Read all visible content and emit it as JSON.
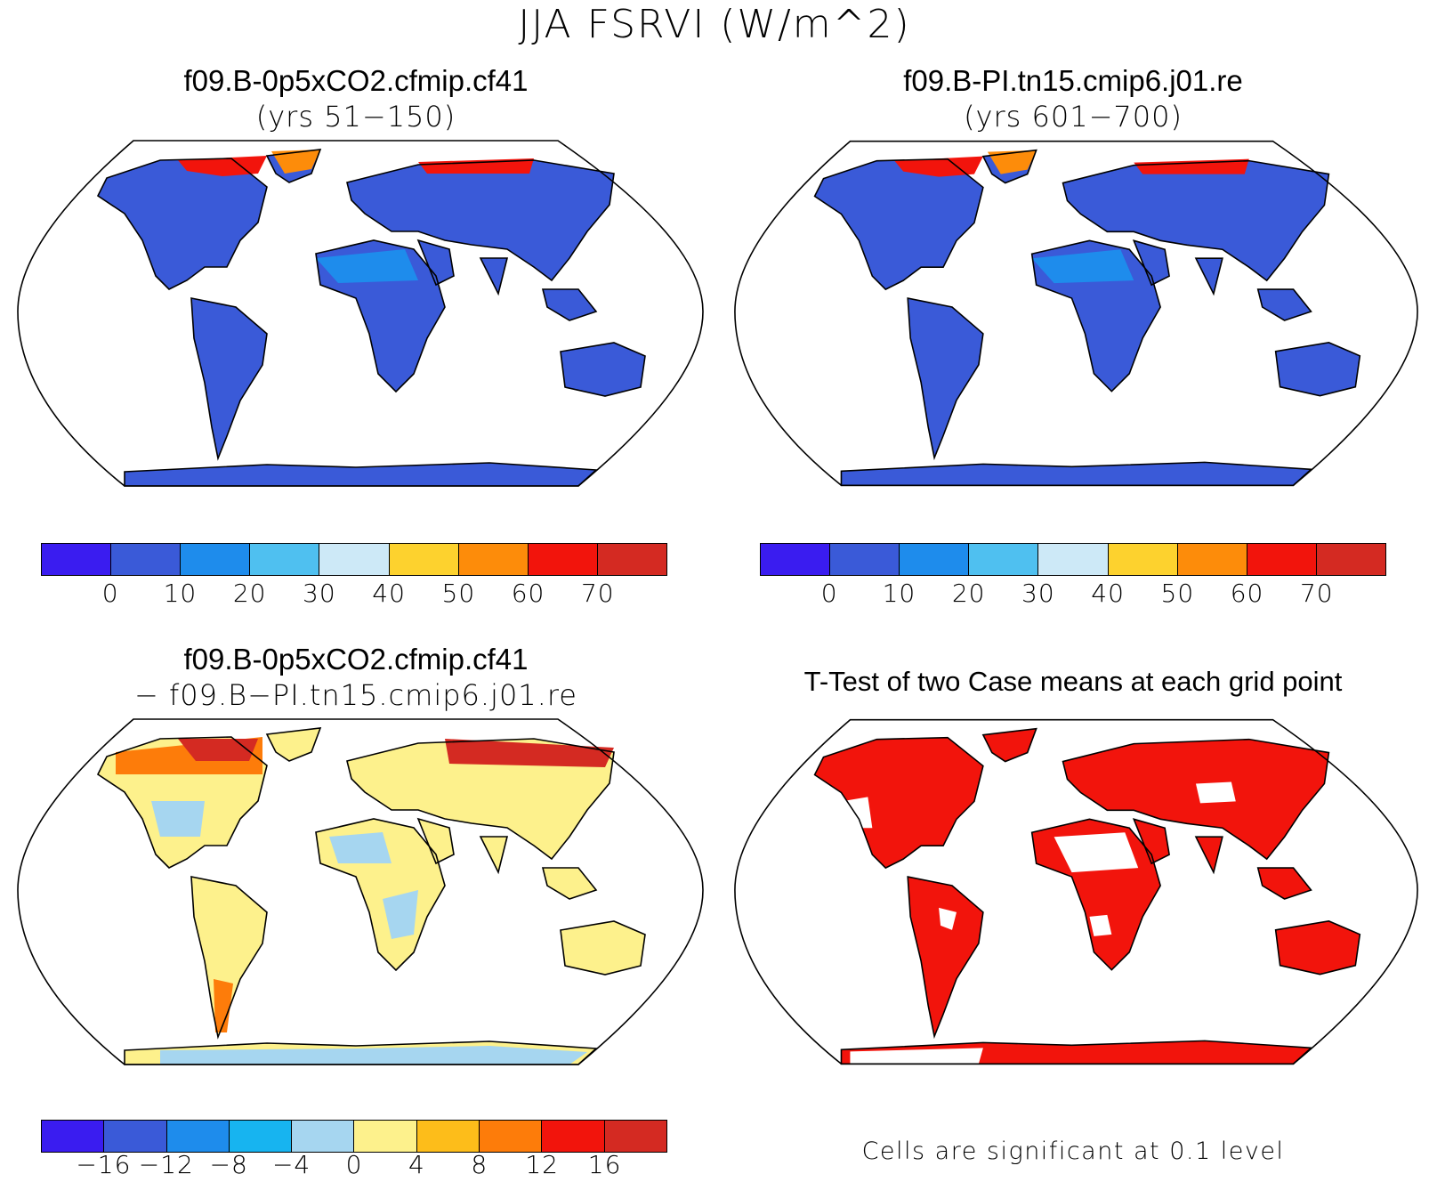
{
  "figure": {
    "title": "JJA FSRVI (W/m^2)"
  },
  "panels": [
    {
      "id": "case1",
      "title": "f09.B-0p5xCO2.cfmip.cf41",
      "subtitle": "(yrs 51−150)"
    },
    {
      "id": "case2",
      "title": "f09.B-PI.tn15.cmip6.j01.re",
      "subtitle": "(yrs 601−700)"
    },
    {
      "id": "diff",
      "title": "f09.B-0p5xCO2.cfmip.cf41",
      "subtitle": "− f09.B−PI.tn15.cmip6.j01.re"
    },
    {
      "id": "ttest",
      "title": "T-Test of two Case means at each grid point",
      "note": "Cells are significant at 0.1 level"
    }
  ],
  "colorbar_abs": {
    "colors": [
      "#3a1cf0",
      "#3a5ad8",
      "#1e8cec",
      "#4fc0f0",
      "#cde9f7",
      "#fdd22e",
      "#fd8c0a",
      "#f2140c",
      "#d42a22"
    ],
    "labels": [
      "0",
      "10",
      "20",
      "30",
      "40",
      "50",
      "60",
      "70"
    ]
  },
  "colorbar_diff": {
    "colors": [
      "#3a1cf0",
      "#3a5ad8",
      "#1e8cec",
      "#17b4f0",
      "#a6d6f0",
      "#fdf18c",
      "#fdbd1a",
      "#fd7c0a",
      "#f2140c",
      "#d42a22"
    ],
    "labels": [
      "−16",
      "−12",
      "−8",
      "−4",
      "0",
      "4",
      "8",
      "12",
      "16"
    ]
  },
  "map_colors": {
    "ocean": "#ffffff",
    "case_land": "#3a5ad8",
    "case_desert": "#1e8cec",
    "case_arctic_warm": "#f2140c",
    "case_arctic_hot": "#fd8c0a",
    "diff_land": "#fdf18c",
    "diff_cool": "#a6d6f0",
    "diff_warm": "#fd7c0a",
    "diff_hot": "#d42a22",
    "ttest_land": "#f2140c",
    "ttest_ns": "#ffffff"
  }
}
